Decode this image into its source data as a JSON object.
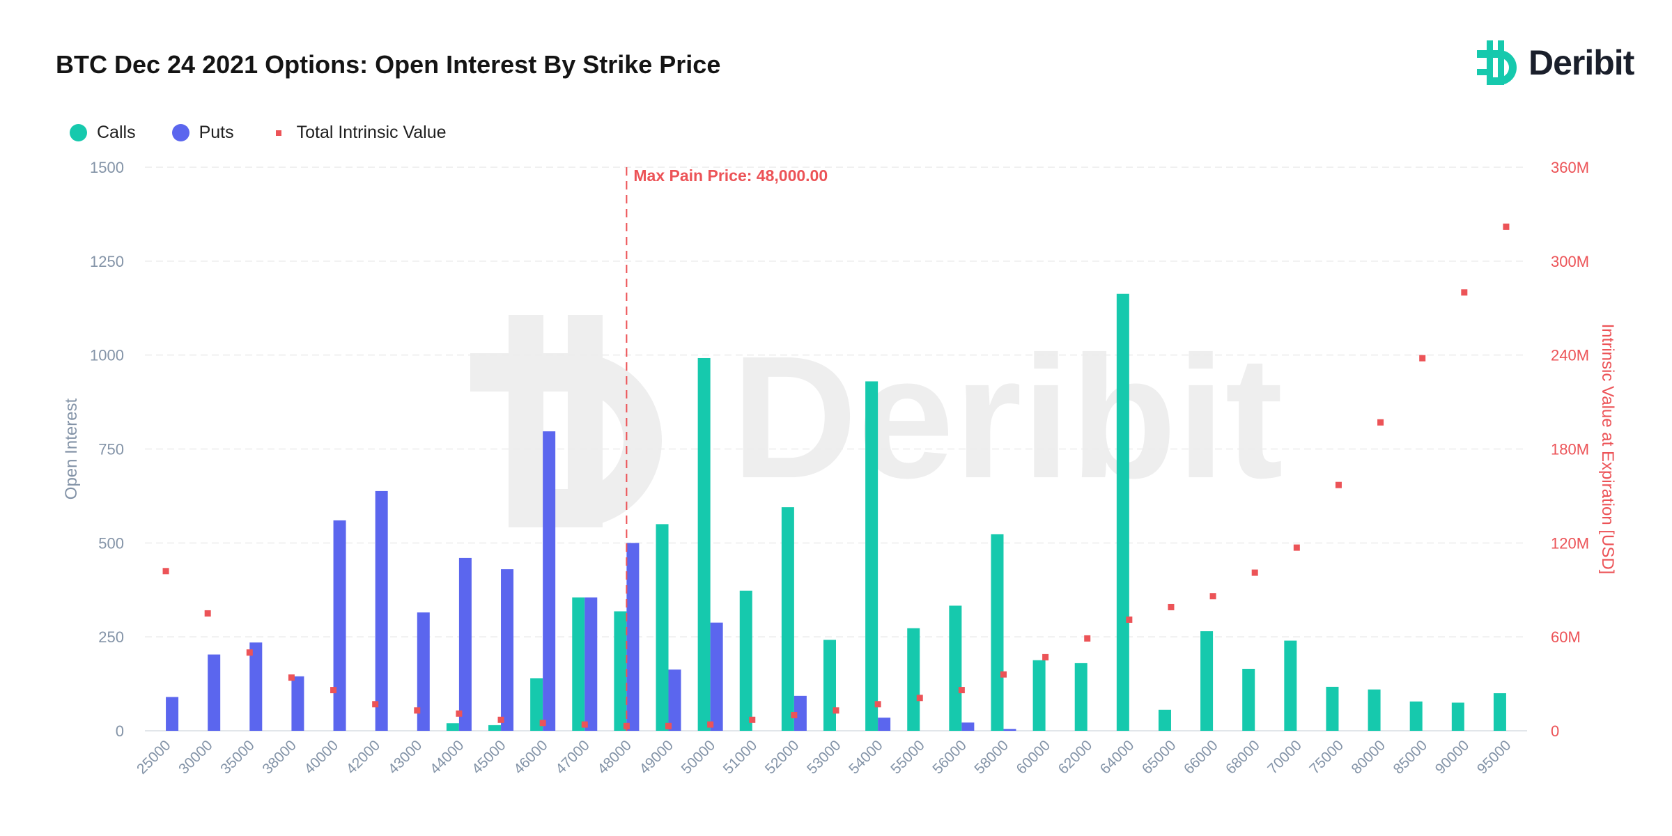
{
  "title": "BTC Dec 24 2021 Options: Open Interest By Strike Price",
  "brand": {
    "name": "Deribit",
    "icon": "deribit-logo-icon",
    "watermark": "Deribit",
    "color": "#16c9ad"
  },
  "legend": [
    {
      "label": "Calls",
      "color": "#16c9ad",
      "shape": "circle"
    },
    {
      "label": "Puts",
      "color": "#5b66ee",
      "shape": "circle"
    },
    {
      "label": "Total Intrinsic Value",
      "color": "#ec5357",
      "shape": "square"
    }
  ],
  "chart_data": {
    "type": "bar",
    "title": "BTC Dec 24 2021 Options: Open Interest By Strike Price",
    "categories": [
      "25000",
      "30000",
      "35000",
      "38000",
      "40000",
      "42000",
      "43000",
      "44000",
      "45000",
      "46000",
      "47000",
      "48000",
      "49000",
      "50000",
      "51000",
      "52000",
      "53000",
      "54000",
      "55000",
      "56000",
      "58000",
      "60000",
      "62000",
      "64000",
      "65000",
      "66000",
      "68000",
      "70000",
      "75000",
      "80000",
      "85000",
      "90000",
      "95000"
    ],
    "series": [
      {
        "name": "Calls",
        "type": "bar",
        "axis": "left",
        "color": "#16c9ad",
        "values": [
          0,
          0,
          0,
          0,
          0,
          0,
          0,
          20,
          15,
          140,
          355,
          318,
          550,
          992,
          373,
          595,
          242,
          930,
          273,
          333,
          523,
          188,
          180,
          1163,
          56,
          265,
          165,
          240,
          117,
          110,
          78,
          75,
          100
        ]
      },
      {
        "name": "Puts",
        "type": "bar",
        "axis": "left",
        "color": "#5b66ee",
        "values": [
          90,
          203,
          235,
          145,
          560,
          638,
          315,
          460,
          430,
          797,
          355,
          500,
          163,
          288,
          0,
          93,
          0,
          35,
          0,
          22,
          5,
          0,
          0,
          0,
          0,
          0,
          0,
          0,
          0,
          0,
          0,
          0,
          0
        ]
      },
      {
        "name": "Total Intrinsic Value",
        "type": "scatter",
        "axis": "right",
        "color": "#ec5357",
        "values": [
          102,
          75,
          50,
          34,
          26,
          17,
          13,
          11,
          7,
          5,
          4,
          3,
          3,
          4,
          7,
          10,
          13,
          17,
          21,
          26,
          36,
          47,
          59,
          71,
          79,
          86,
          101,
          117,
          157,
          197,
          238,
          280,
          322
        ]
      }
    ],
    "ylabel": "Open Interest",
    "ylim": [
      0,
      1500
    ],
    "yticks": [
      "0",
      "250",
      "500",
      "750",
      "1000",
      "1250",
      "1500"
    ],
    "y2label": "Intrinsic Value at Expiration [USD]",
    "y2lim": [
      0,
      360
    ],
    "y2ticks": [
      "0",
      "60M",
      "120M",
      "180M",
      "240M",
      "300M",
      "360M"
    ],
    "grid": true,
    "legend_position": "top-left",
    "annotation": {
      "label": "Max Pain Price: 48,000.00",
      "category": "48000",
      "color": "#ec5357"
    }
  }
}
